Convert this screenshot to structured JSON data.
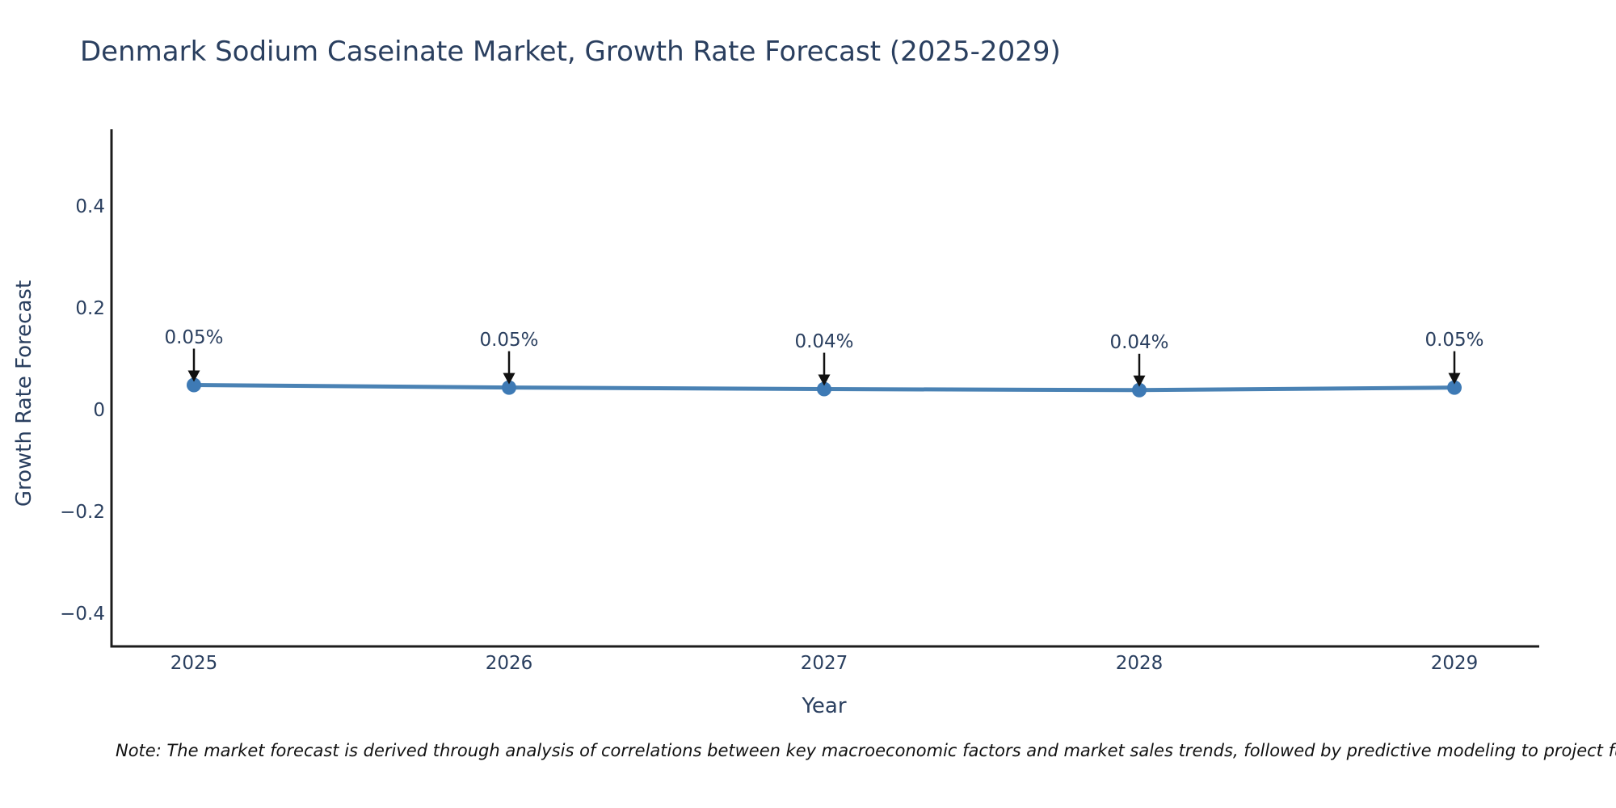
{
  "colors": {
    "background": "#ffffff",
    "title_text": "#2a3f5f",
    "axis_text": "#2a3f5f",
    "annotation_text": "#2a3f5f",
    "axis_line": "#1c1c1c",
    "line": "#4a82b4",
    "marker": "#3e7ab5",
    "arrow": "#111111",
    "note_text": "#111111"
  },
  "chart_data": {
    "type": "line",
    "title": "Denmark Sodium Caseinate Market, Growth Rate Forecast (2025-2029)",
    "xlabel": "Year",
    "ylabel": "Growth Rate Forecast",
    "categories": [
      "2025",
      "2026",
      "2027",
      "2028",
      "2029"
    ],
    "series": [
      {
        "name": "Growth Rate Forecast",
        "values": [
          0.05,
          0.045,
          0.042,
          0.04,
          0.045
        ],
        "point_labels": [
          "0.05%",
          "0.05%",
          "0.04%",
          "0.04%",
          "0.05%"
        ]
      }
    ],
    "ytick_labels": [
      "0.4",
      "0.2",
      "0",
      "−0.2",
      "−0.4"
    ],
    "ytick_values": [
      0.4,
      0.2,
      0,
      -0.2,
      -0.4
    ],
    "ylim": [
      -0.46,
      0.55
    ],
    "grid": false,
    "legend": "none",
    "annotation_style": "label-with-down-arrow"
  },
  "note": {
    "text": "Note: The market forecast is derived through analysis of correlations between key macroeconomic factors and market sales trends, followed by predictive modeling to project future sa"
  }
}
